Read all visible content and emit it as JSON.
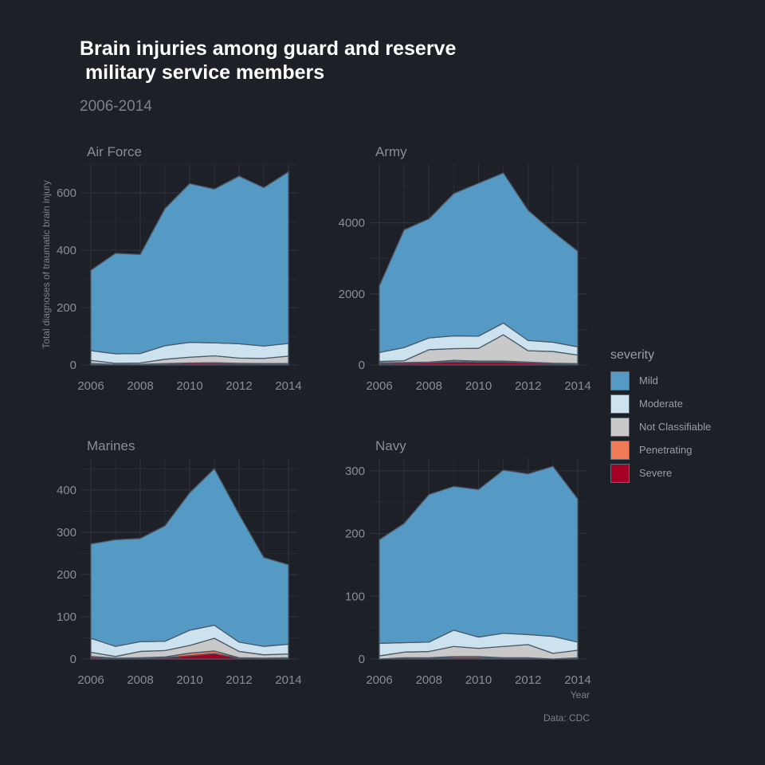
{
  "title": "Brain injuries among guard and reserve\n military service members",
  "subtitle": "2006-2014",
  "caption": "Data: CDC",
  "colors": {
    "background": "#1e2028",
    "grid": "#30333b",
    "outline": "#4b5a69",
    "Mild": "#5599c5",
    "Moderate": "#cce2ef",
    "Not Classifiable": "#c9c9c9",
    "Penetrating": "#ef7a55",
    "Severe": "#a50026"
  },
  "chart_data": {
    "type": "area",
    "stacked": true,
    "facets": "free y scales",
    "grid": true,
    "legend_position": "right",
    "xlabel": "Year",
    "ylabel": "Total diagnoses of traumatic brain injury",
    "x": [
      2006,
      2007,
      2008,
      2009,
      2010,
      2011,
      2012,
      2013,
      2014
    ],
    "x_ticks": [
      2006,
      2008,
      2010,
      2012,
      2014
    ],
    "legend_title": "severity",
    "legend_order": [
      "Mild",
      "Moderate",
      "Not Classifiable",
      "Penetrating",
      "Severe"
    ],
    "panels": [
      {
        "label": "Air Force",
        "ylim": [
          0,
          700
        ],
        "y_ticks": [
          0,
          200,
          400,
          600
        ],
        "series": [
          {
            "name": "Severe",
            "values": [
              4,
              2,
              2,
              4,
              6,
              6,
              5,
              4,
              4
            ]
          },
          {
            "name": "Penetrating",
            "values": [
              1,
              0,
              0,
              1,
              1,
              2,
              1,
              1,
              1
            ]
          },
          {
            "name": "Not Classifiable",
            "values": [
              11,
              4,
              5,
              15,
              20,
              24,
              18,
              18,
              26
            ]
          },
          {
            "name": "Moderate",
            "values": [
              34,
              33,
              33,
              47,
              52,
              45,
              50,
              43,
              44
            ]
          },
          {
            "name": "Mild",
            "values": [
              280,
              350,
              345,
              478,
              553,
              536,
              584,
              552,
              598
            ]
          }
        ]
      },
      {
        "label": "Army",
        "ylim": [
          0,
          5650
        ],
        "y_ticks": [
          0,
          2000,
          4000
        ],
        "series": [
          {
            "name": "Severe",
            "values": [
              40,
              50,
              60,
              90,
              80,
              80,
              60,
              40,
              30
            ]
          },
          {
            "name": "Penetrating",
            "values": [
              20,
              20,
              20,
              40,
              30,
              30,
              20,
              10,
              10
            ]
          },
          {
            "name": "Not Classifiable",
            "values": [
              40,
              50,
              350,
              330,
              360,
              740,
              320,
              330,
              240
            ]
          },
          {
            "name": "Moderate",
            "values": [
              250,
              370,
              330,
              360,
              340,
              330,
              290,
              260,
              230
            ]
          },
          {
            "name": "Mild",
            "values": [
              1870,
              3310,
              3350,
              4000,
              4300,
              4220,
              3660,
              3110,
              2690
            ]
          }
        ]
      },
      {
        "label": "Marines",
        "ylim": [
          0,
          475
        ],
        "y_ticks": [
          0,
          100,
          200,
          300,
          400
        ],
        "series": [
          {
            "name": "Severe",
            "values": [
              4,
              1,
              2,
              3,
              8,
              13,
              2,
              1,
              2
            ]
          },
          {
            "name": "Penetrating",
            "values": [
              2,
              1,
              1,
              2,
              6,
              6,
              1,
              1,
              1
            ]
          },
          {
            "name": "Not Classifiable",
            "values": [
              10,
              4,
              15,
              15,
              18,
              30,
              15,
              8,
              9
            ]
          },
          {
            "name": "Moderate",
            "values": [
              33,
              24,
              23,
              22,
              36,
              31,
              22,
              20,
              23
            ]
          },
          {
            "name": "Mild",
            "values": [
              223,
              252,
              244,
              273,
              325,
              370,
              302,
              210,
              188
            ]
          }
        ]
      },
      {
        "label": "Navy",
        "ylim": [
          0,
          320
        ],
        "y_ticks": [
          0,
          100,
          200,
          300
        ],
        "series": [
          {
            "name": "Severe",
            "values": [
              0,
              1,
              1,
              2,
              2,
              1,
              1,
              0,
              1
            ]
          },
          {
            "name": "Penetrating",
            "values": [
              0,
              1,
              1,
              2,
              2,
              1,
              1,
              0,
              1
            ]
          },
          {
            "name": "Not Classifiable",
            "values": [
              5,
              9,
              10,
              16,
              13,
              18,
              21,
              9,
              12
            ]
          },
          {
            "name": "Moderate",
            "values": [
              20,
              15,
              15,
              26,
              18,
              21,
              16,
              27,
              13
            ]
          },
          {
            "name": "Mild",
            "values": [
              165,
              190,
              235,
              229,
              235,
              260,
              256,
              271,
              228
            ]
          }
        ]
      }
    ]
  }
}
